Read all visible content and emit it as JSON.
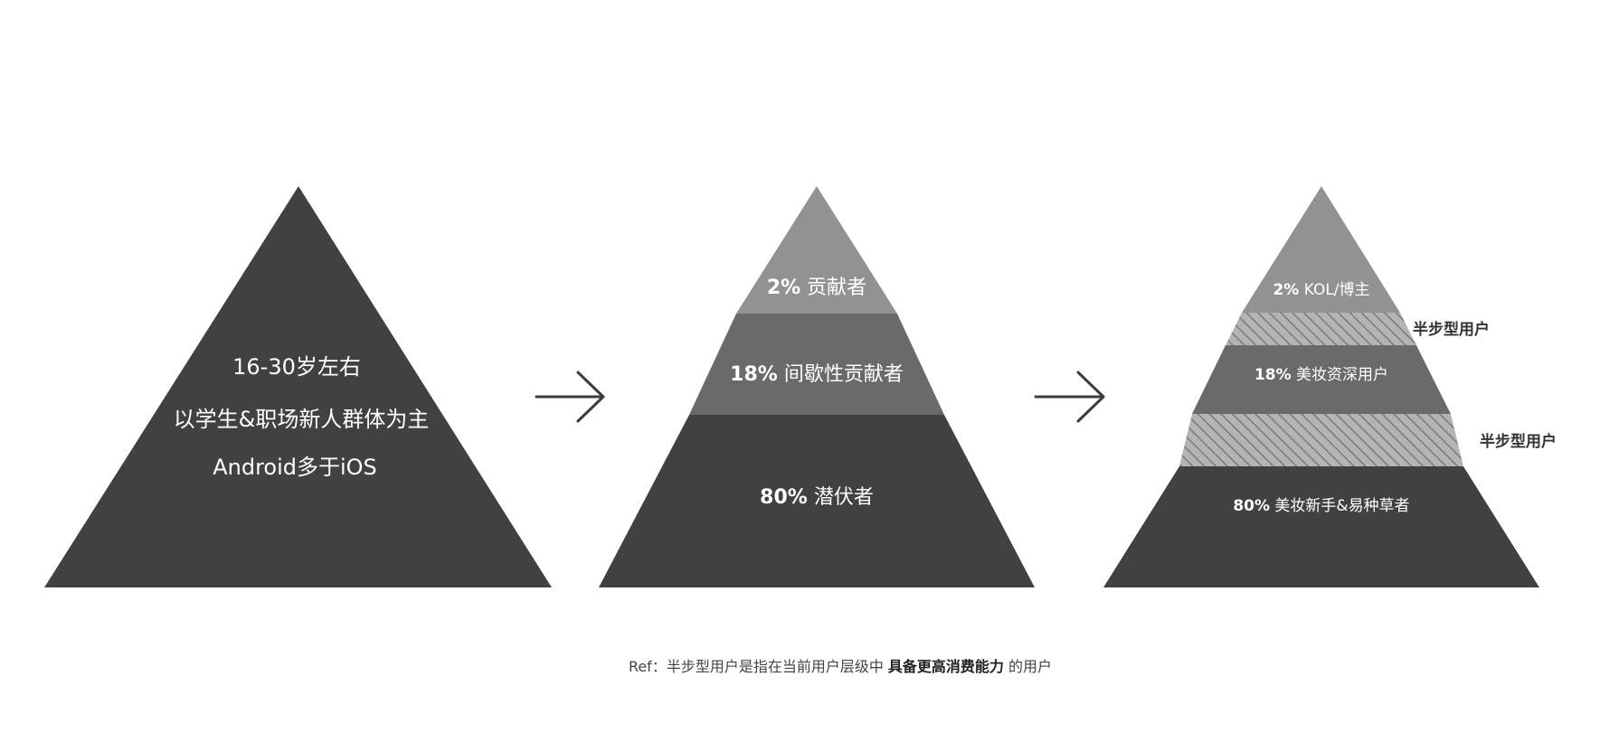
{
  "colors": {
    "dark": "#414141",
    "mid": "#6a6a6a",
    "light": "#929292",
    "hatch_bg": "#b4b4b4",
    "hatch_line": "#7a7a7a",
    "arrow": "#3c3c3c",
    "text_white": "#ffffff",
    "text_dark": "#333333"
  },
  "pyramid1": {
    "line1": "16-30岁左右",
    "line2": "以学生&职场新人群体为主",
    "line3": "Android多于iOS"
  },
  "pyramid2": {
    "top": {
      "pct": "2%",
      "label": "贡献者"
    },
    "middle": {
      "pct": "18%",
      "label": "间歇性贡献者"
    },
    "bottom": {
      "pct": "80%",
      "label": "潜伏者"
    }
  },
  "pyramid3": {
    "top": {
      "pct": "2%",
      "label": "KOL/博主"
    },
    "band1_label": "半步型用户",
    "middle": {
      "pct": "18%",
      "label": "美妆资深用户"
    },
    "band2_label": "半步型用户",
    "bottom": {
      "pct": "80%",
      "label": "美妆新手&易种草者"
    }
  },
  "footnote": {
    "prefix": "Ref：半步型用户是指在当前用户层级中",
    "bold": "具备更高消费能力",
    "suffix": "的用户"
  }
}
